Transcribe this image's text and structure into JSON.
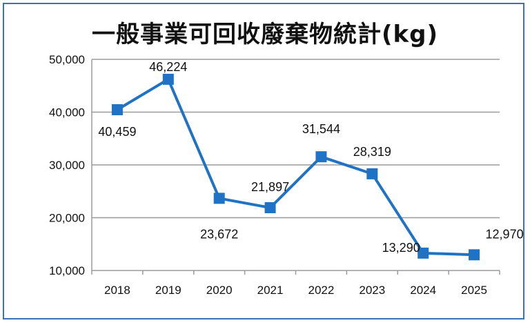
{
  "chart_data": {
    "type": "line",
    "title": "一般事業可回收廢棄物統計(kg)",
    "categories": [
      "2018",
      "2019",
      "2020",
      "2021",
      "2022",
      "2023",
      "2024",
      "2025"
    ],
    "series": [
      {
        "values": [
          40459,
          46224,
          23672,
          21897,
          31544,
          28319,
          13290,
          12970
        ],
        "color": "#1f72c4"
      }
    ],
    "data_labels": [
      "40,459",
      "46,224",
      "23,672",
      "21,897",
      "31,544",
      "28,319",
      "13,290",
      "12,970"
    ],
    "y_ticks": [
      "10,000",
      "20,000",
      "30,000",
      "40,000",
      "50,000"
    ],
    "ylim": [
      10000,
      50000
    ],
    "grid": true,
    "marker": "square"
  }
}
